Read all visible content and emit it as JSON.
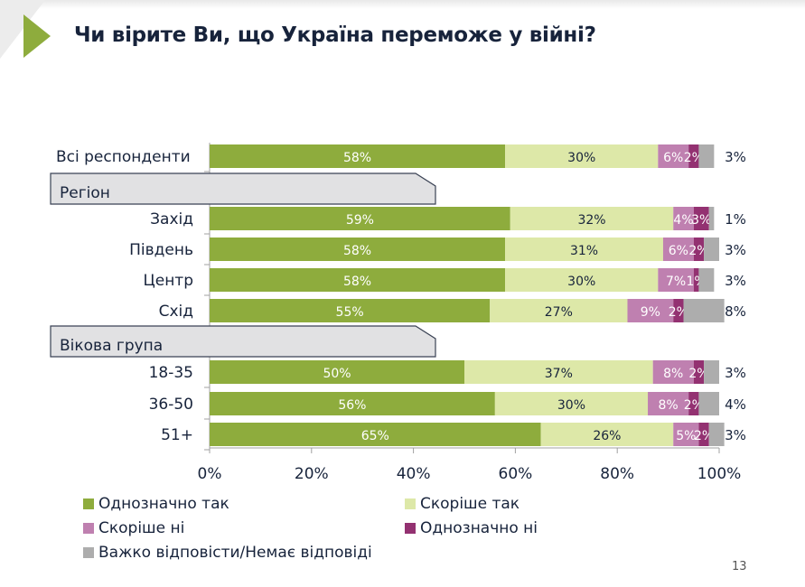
{
  "title": "Чи вірите Ви, що Україна переможе у війні?",
  "page_number": "13",
  "colors": {
    "accent": "#8eac3d",
    "text": "#17233b",
    "group_header_bg": "#e1e1e3"
  },
  "chart_data": {
    "type": "bar",
    "orientation": "horizontal",
    "stacked": true,
    "title": "Чи вірите Ви, що Україна переможе у війні?",
    "xlabel": "",
    "ylabel": "",
    "xlim": [
      0,
      100
    ],
    "x_ticks": [
      "0%",
      "20%",
      "40%",
      "60%",
      "80%",
      "100%"
    ],
    "x_tick_values": [
      0,
      20,
      40,
      60,
      80,
      100
    ],
    "grid": false,
    "legend_position": "bottom",
    "rows": [
      {
        "kind": "category",
        "label": "Всі респонденти",
        "label_align": "left"
      },
      {
        "kind": "group",
        "label": "Регіон"
      },
      {
        "kind": "category",
        "label": "Захід"
      },
      {
        "kind": "category",
        "label": "Південь"
      },
      {
        "kind": "category",
        "label": "Центр"
      },
      {
        "kind": "category",
        "label": "Схід"
      },
      {
        "kind": "group",
        "label": "Вікова група"
      },
      {
        "kind": "category",
        "label": "18-35"
      },
      {
        "kind": "category",
        "label": "36-50"
      },
      {
        "kind": "category",
        "label": "51+"
      }
    ],
    "categories": [
      "Всі респонденти",
      "Захід",
      "Південь",
      "Центр",
      "Схід",
      "18-35",
      "36-50",
      "51+"
    ],
    "series": [
      {
        "name": "Однозначно так",
        "color": "#8eac3d",
        "label_color": "#ffffff",
        "values": [
          58,
          59,
          58,
          58,
          55,
          50,
          56,
          65
        ],
        "labels": [
          "58%",
          "59%",
          "58%",
          "58%",
          "55%",
          "50%",
          "56%",
          "65%"
        ]
      },
      {
        "name": "Скоріше так",
        "color": "#dde8a8",
        "label_color": "#17233b",
        "values": [
          30,
          32,
          31,
          30,
          27,
          37,
          30,
          26
        ],
        "labels": [
          "30%",
          "32%",
          "31%",
          "30%",
          "27%",
          "37%",
          "30%",
          "26%"
        ]
      },
      {
        "name": "Скоріше ні",
        "color": "#bf80b0",
        "label_color": "#ffffff",
        "values": [
          6,
          4,
          6,
          7,
          9,
          8,
          8,
          5
        ],
        "labels": [
          "6%",
          "4%",
          "6%",
          "7%",
          "9%",
          "8%",
          "8%",
          "5%"
        ]
      },
      {
        "name": "Однозначно ні",
        "color": "#933171",
        "label_color": "#ffffff",
        "values": [
          2,
          3,
          2,
          1,
          2,
          2,
          2,
          2
        ],
        "labels": [
          "2%",
          "3%",
          "2%",
          "1%",
          "2%",
          "2%",
          "2%",
          "2%"
        ]
      },
      {
        "name": "Важко відповісти/Немає відповіді",
        "color": "#adadad",
        "label_color": "#17233b",
        "values": [
          3,
          1,
          3,
          3,
          8,
          3,
          4,
          3
        ],
        "labels": [
          "3%",
          "1%",
          "3%",
          "3%",
          "8%",
          "3%",
          "4%",
          "3%"
        ]
      }
    ]
  },
  "legend": [
    {
      "label": "Однозначно так",
      "color": "#8eac3d"
    },
    {
      "label": "Скоріше так",
      "color": "#dde8a8"
    },
    {
      "label": "Скоріше ні",
      "color": "#bf80b0"
    },
    {
      "label": "Однозначно ні",
      "color": "#933171"
    },
    {
      "label": "Важко відповісти/Немає відповіді",
      "color": "#adadad"
    }
  ]
}
